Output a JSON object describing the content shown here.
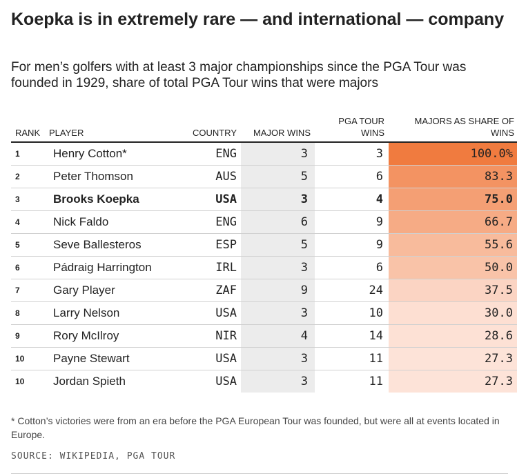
{
  "title": "Koepka is in extremely rare — and international — company",
  "subtitle": "For men’s golfers with at least 3 major championships since the PGA Tour was founded in 1929, share of total PGA Tour wins that were majors",
  "columns": {
    "rank": "RANK",
    "player": "PLAYER",
    "country": "COUNTRY",
    "major_wins": "MAJOR WINS",
    "pga_tour_wins": "PGA TOUR WINS",
    "share": "MAJORS AS SHARE OF WINS"
  },
  "colors": {
    "heat_high": "#f07b3f",
    "heat_low": "#fde3d8",
    "major_column_bg": "#ececec"
  },
  "chart_data": {
    "type": "table",
    "title": "Koepka is in extremely rare — and international — company",
    "highlight_player": "Brooks Koepka",
    "rows": [
      {
        "rank": "1",
        "player": "Henry Cotton*",
        "country": "ENG",
        "major_wins": 3,
        "pga_tour_wins": 3,
        "share": 100.0,
        "share_label": "100.0%"
      },
      {
        "rank": "2",
        "player": "Peter Thomson",
        "country": "AUS",
        "major_wins": 5,
        "pga_tour_wins": 6,
        "share": 83.3,
        "share_label": "83.3"
      },
      {
        "rank": "3",
        "player": "Brooks Koepka",
        "country": "USA",
        "major_wins": 3,
        "pga_tour_wins": 4,
        "share": 75.0,
        "share_label": "75.0"
      },
      {
        "rank": "4",
        "player": "Nick Faldo",
        "country": "ENG",
        "major_wins": 6,
        "pga_tour_wins": 9,
        "share": 66.7,
        "share_label": "66.7"
      },
      {
        "rank": "5",
        "player": "Seve Ballesteros",
        "country": "ESP",
        "major_wins": 5,
        "pga_tour_wins": 9,
        "share": 55.6,
        "share_label": "55.6"
      },
      {
        "rank": "6",
        "player": "Pádraig Harrington",
        "country": "IRL",
        "major_wins": 3,
        "pga_tour_wins": 6,
        "share": 50.0,
        "share_label": "50.0"
      },
      {
        "rank": "7",
        "player": "Gary Player",
        "country": "ZAF",
        "major_wins": 9,
        "pga_tour_wins": 24,
        "share": 37.5,
        "share_label": "37.5"
      },
      {
        "rank": "8",
        "player": "Larry Nelson",
        "country": "USA",
        "major_wins": 3,
        "pga_tour_wins": 10,
        "share": 30.0,
        "share_label": "30.0"
      },
      {
        "rank": "9",
        "player": "Rory McIlroy",
        "country": "NIR",
        "major_wins": 4,
        "pga_tour_wins": 14,
        "share": 28.6,
        "share_label": "28.6"
      },
      {
        "rank": "10",
        "player": "Payne Stewart",
        "country": "USA",
        "major_wins": 3,
        "pga_tour_wins": 11,
        "share": 27.3,
        "share_label": "27.3"
      },
      {
        "rank": "10",
        "player": "Jordan Spieth",
        "country": "USA",
        "major_wins": 3,
        "pga_tour_wins": 11,
        "share": 27.3,
        "share_label": "27.3"
      }
    ]
  },
  "footnote": "* Cotton’s victories were from an era before the PGA European Tour was founded, but were all at events located in Europe.",
  "source": "SOURCE: WIKIPEDIA, PGA TOUR"
}
